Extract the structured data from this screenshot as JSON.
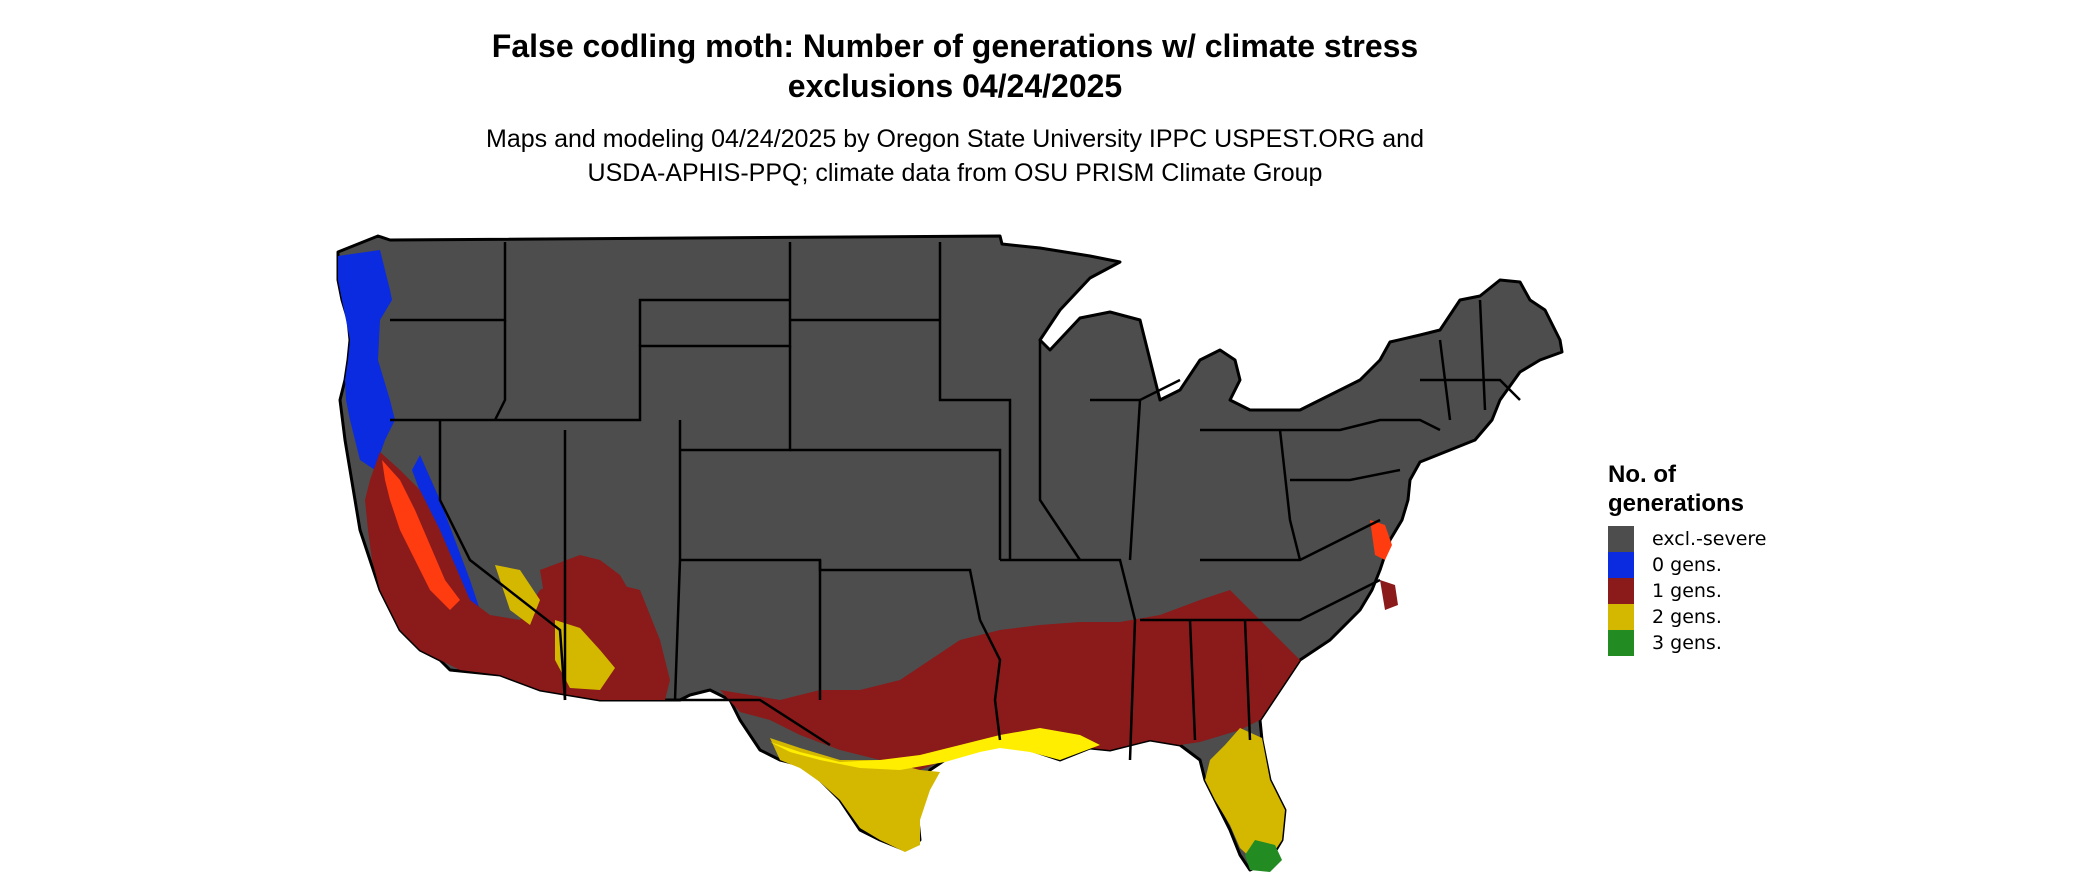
{
  "title": {
    "line1": "False codling moth: Number of generations w/ climate stress",
    "line2": "exclusions 04/24/2025"
  },
  "subtitle": {
    "line1": "Maps and modeling 04/24/2025 by Oregon State University IPPC USPEST.ORG and",
    "line2": "USDA-APHIS-PPQ; climate data from OSU PRISM Climate Group"
  },
  "legend": {
    "title_line1": "No. of",
    "title_line2": "generations",
    "items": [
      {
        "label": "excl.-severe",
        "color": "#4d4d4d"
      },
      {
        "label": "0 gens.",
        "color": "#0a2be0"
      },
      {
        "label": "1 gens.",
        "color": "#8b1a1a"
      },
      {
        "label": "2 gens.",
        "color": "#d4b800"
      },
      {
        "label": "3 gens.",
        "color": "#228b22"
      }
    ]
  },
  "colors": {
    "excluded": "#4d4d4d",
    "gen0": "#0a2be0",
    "gen1": "#8b1a1a",
    "gen1_highlight": "#ff3b10",
    "gen2": "#d4b800",
    "gen2_highlight": "#ffee00",
    "gen3": "#228b22",
    "borders": "#000000"
  }
}
